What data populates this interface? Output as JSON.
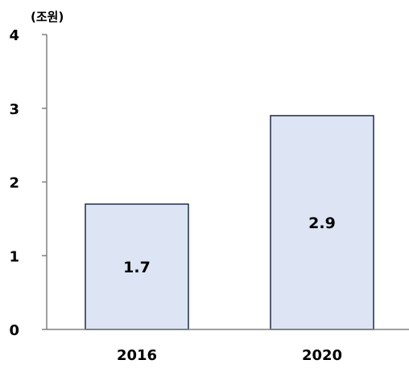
{
  "chart_data": {
    "type": "bar",
    "ylabel": "(조원)",
    "categories": [
      "2016",
      "2020"
    ],
    "values": [
      1.7,
      2.9
    ],
    "value_labels": [
      "1.7",
      "2.9"
    ],
    "yticks": [
      "0",
      "1",
      "2",
      "3",
      "4"
    ],
    "ylim": [
      0,
      4
    ],
    "grid": false,
    "bar_fill": "#dde4f3",
    "bar_stroke": "#1f2c4a",
    "axis_color": "#808080"
  }
}
